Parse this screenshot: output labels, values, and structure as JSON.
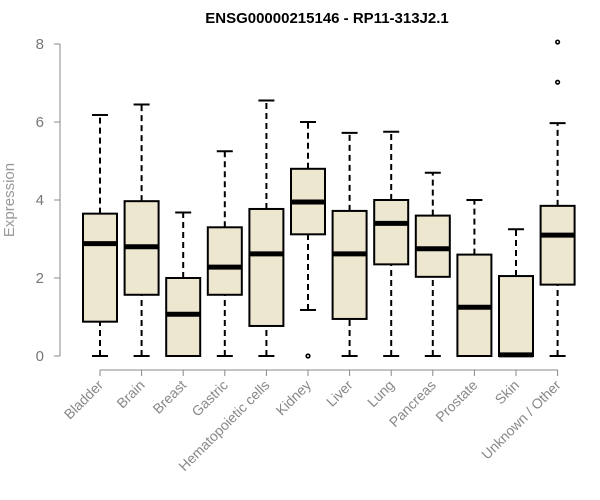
{
  "chart_data": {
    "type": "box",
    "title": "ENSG00000215146 - RP11-313J2.1",
    "ylabel": "Expression",
    "xlabel": "",
    "ylim": [
      0,
      8
    ],
    "yticks": [
      "0",
      "2",
      "4",
      "6",
      "8"
    ],
    "categories": [
      "Bladder",
      "Brain",
      "Breast",
      "Gastric",
      "Hematopoietic cells",
      "Kidney",
      "Liver",
      "Lung",
      "Pancreas",
      "Prostate",
      "Skin",
      "Unknown / Other"
    ],
    "boxes": [
      {
        "whisker_low": 0,
        "q1": 0.88,
        "median": 2.88,
        "q3": 3.65,
        "whisker_high": 6.18,
        "outliers": []
      },
      {
        "whisker_low": 0,
        "q1": 1.57,
        "median": 2.8,
        "q3": 3.97,
        "whisker_high": 6.45,
        "outliers": []
      },
      {
        "whisker_low": 0,
        "q1": 0,
        "median": 1.07,
        "q3": 2.0,
        "whisker_high": 3.68,
        "outliers": []
      },
      {
        "whisker_low": 0,
        "q1": 1.57,
        "median": 2.28,
        "q3": 3.3,
        "whisker_high": 5.25,
        "outliers": []
      },
      {
        "whisker_low": 0,
        "q1": 0.77,
        "median": 2.62,
        "q3": 3.77,
        "whisker_high": 6.55,
        "outliers": []
      },
      {
        "whisker_low": 1.18,
        "q1": 3.12,
        "median": 3.95,
        "q3": 4.8,
        "whisker_high": 6.0,
        "outliers": [
          0
        ]
      },
      {
        "whisker_low": 0,
        "q1": 0.95,
        "median": 2.62,
        "q3": 3.72,
        "whisker_high": 5.72,
        "outliers": []
      },
      {
        "whisker_low": 0,
        "q1": 2.35,
        "median": 3.4,
        "q3": 4.0,
        "whisker_high": 5.75,
        "outliers": []
      },
      {
        "whisker_low": 0,
        "q1": 2.03,
        "median": 2.75,
        "q3": 3.6,
        "whisker_high": 4.7,
        "outliers": []
      },
      {
        "whisker_low": 0,
        "q1": 0,
        "median": 1.25,
        "q3": 2.6,
        "whisker_high": 4.0,
        "outliers": []
      },
      {
        "whisker_low": 0,
        "q1": 0,
        "median": 0.03,
        "q3": 2.05,
        "whisker_high": 3.25,
        "outliers": []
      },
      {
        "whisker_low": 0,
        "q1": 1.83,
        "median": 3.1,
        "q3": 3.85,
        "whisker_high": 5.97,
        "outliers": [
          7.02,
          8.05
        ]
      }
    ],
    "grid": false,
    "legend": "none",
    "colors": {
      "box_fill": "#ede7d0",
      "box_stroke": "#000000",
      "axis": "#888888"
    }
  }
}
